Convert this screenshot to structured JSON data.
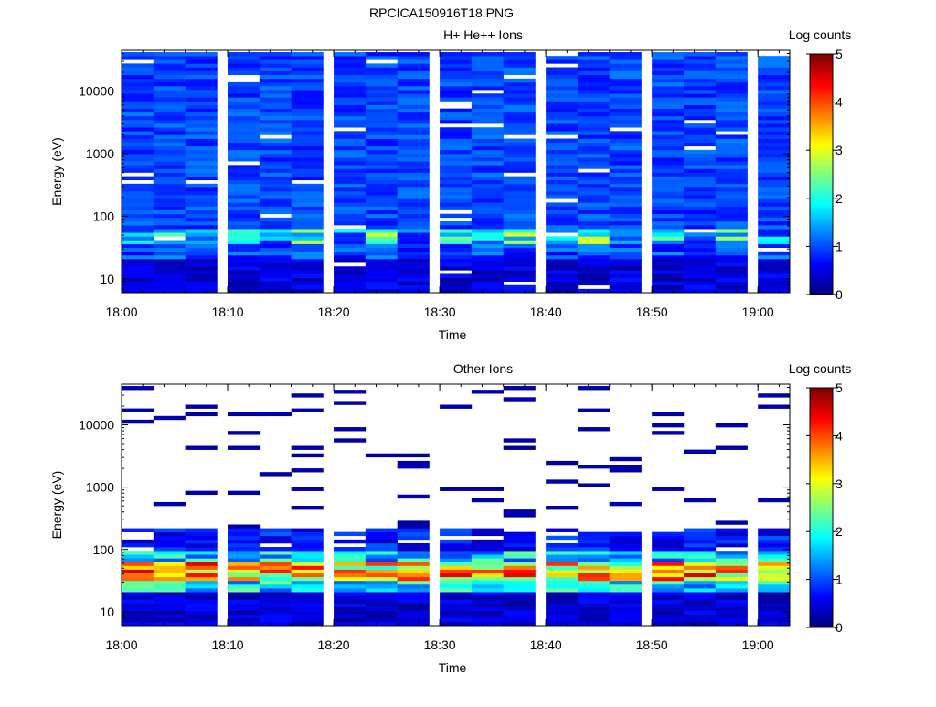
{
  "page_title": "RPCICA150916T18.PNG",
  "chart_data": [
    {
      "type": "heatmap",
      "title": "H+ He++ Ions",
      "xlabel": "Time",
      "ylabel": "Energy (eV)",
      "y_scale": "log",
      "xlim": [
        "18:00",
        "19:03"
      ],
      "ylim": [
        6,
        45000
      ],
      "x_ticks": [
        "18:00",
        "18:10",
        "18:20",
        "18:30",
        "18:40",
        "18:50",
        "19:00"
      ],
      "y_ticks": [
        "10",
        "100",
        "1000",
        "10000"
      ],
      "colorbar_label": "Log counts",
      "colorbar_range": [
        0,
        5
      ],
      "colorbar_ticks": [
        "0",
        "1",
        "2",
        "3",
        "4",
        "5"
      ],
      "colormap": "jet",
      "grid": false,
      "time_columns": [
        "18:00",
        "18:03",
        "18:06",
        "18:10",
        "18:13",
        "18:16",
        "18:20",
        "18:23",
        "18:26",
        "18:30",
        "18:33",
        "18:36",
        "18:40",
        "18:43",
        "18:46",
        "18:50",
        "18:53",
        "18:56",
        "19:00"
      ],
      "data_summary": "Background levels ~0.8-1.2 log counts across 70 eV-45 keV; enhanced 2-3 log counts near 40-60 eV; lower levels (0.2-0.6) below 20 eV"
    },
    {
      "type": "heatmap",
      "title": "Other Ions",
      "xlabel": "Time",
      "ylabel": "Energy (eV)",
      "y_scale": "log",
      "xlim": [
        "18:00",
        "19:03"
      ],
      "ylim": [
        6,
        45000
      ],
      "x_ticks": [
        "18:00",
        "18:10",
        "18:20",
        "18:30",
        "18:40",
        "18:50",
        "19:00"
      ],
      "y_ticks": [
        "10",
        "100",
        "1000",
        "10000"
      ],
      "colorbar_label": "Log counts",
      "colorbar_range": [
        0,
        5
      ],
      "colorbar_ticks": [
        "0",
        "1",
        "2",
        "3",
        "4",
        "5"
      ],
      "colormap": "jet",
      "grid": false,
      "time_columns": [
        "18:00",
        "18:03",
        "18:06",
        "18:10",
        "18:13",
        "18:16",
        "18:20",
        "18:23",
        "18:26",
        "18:30",
        "18:33",
        "18:36",
        "18:40",
        "18:43",
        "18:46",
        "18:50",
        "18:53",
        "18:56",
        "19:00"
      ],
      "data_summary": "Sparse single counts (~0.2) above 200 eV; dense 0.5-1 below 200 eV; peak 3.5-4.5 log counts at 35-55 eV; low levels below 20 eV"
    }
  ]
}
